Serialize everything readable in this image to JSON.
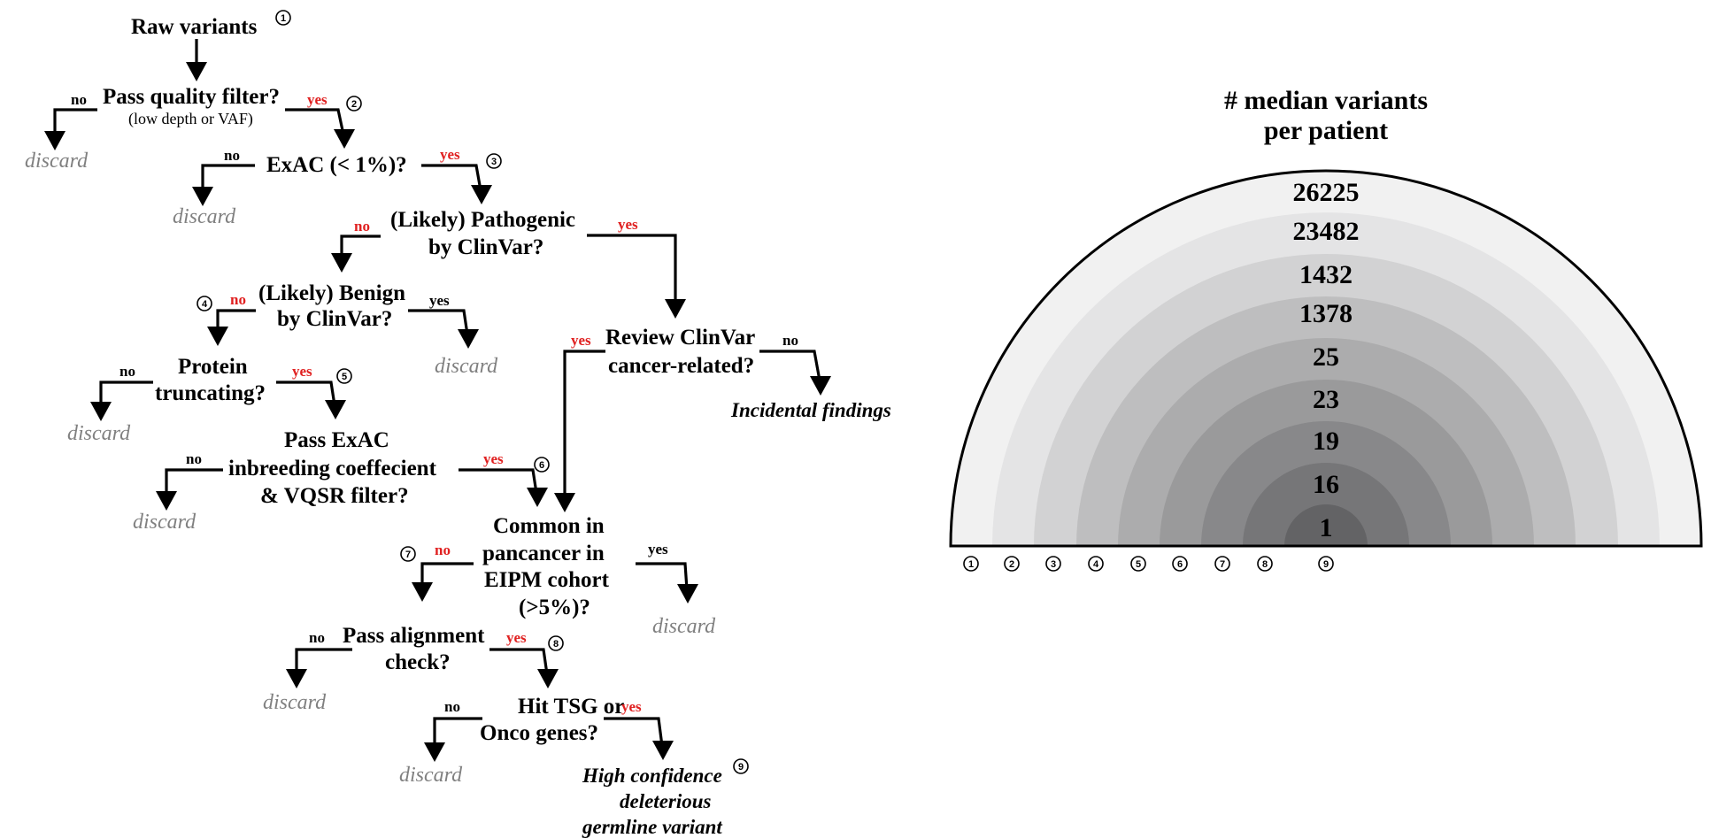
{
  "flowchart": {
    "root": "Raw variants",
    "q1": {
      "text": "Pass quality filter?",
      "sub": "(low depth or VAF)"
    },
    "q2": {
      "text": "ExAC (< 1%)?"
    },
    "q3": {
      "line1": "(Likely) Pathogenic",
      "line2": "by ClinVar?"
    },
    "q4": {
      "line1": "(Likely) Benign",
      "line2": "by ClinVar?"
    },
    "q5": {
      "line1": "Protein",
      "line2": "truncating?"
    },
    "q6": {
      "line1": "Pass ExAC",
      "line2": "inbreeding coeffecient",
      "line3": "& VQSR filter?"
    },
    "q7": {
      "line1": "Review ClinVar",
      "line2": "cancer-related?"
    },
    "q8": {
      "line1": "Common in",
      "line2": "pancancer in",
      "line3": "EIPM cohort",
      "line4": "(>5%)?"
    },
    "q9": {
      "line1": "Pass alignment",
      "line2": "check?"
    },
    "q10": {
      "line1": "Hit TSG or",
      "line2": "Onco genes?"
    },
    "discard": "discard",
    "incidental": "Incidental findings",
    "final": {
      "line1": "High confidence",
      "line2": "deleterious",
      "line3": "germline variant"
    },
    "yes": "yes",
    "no": "no",
    "steps": [
      "1",
      "2",
      "3",
      "4",
      "5",
      "6",
      "7",
      "8",
      "9"
    ]
  },
  "chart_data": {
    "type": "nested-semicircle",
    "title_line1": "# median variants",
    "title_line2": "per patient",
    "categories": [
      "1",
      "2",
      "3",
      "4",
      "5",
      "6",
      "7",
      "8",
      "9"
    ],
    "values": [
      26225,
      23482,
      1432,
      1378,
      25,
      23,
      19,
      16,
      1
    ],
    "colors": [
      "#f1f1f1",
      "#e4e4e5",
      "#d2d2d3",
      "#bebebf",
      "#acacad",
      "#9a9a9b",
      "#88888a",
      "#767678",
      "#636365"
    ]
  }
}
